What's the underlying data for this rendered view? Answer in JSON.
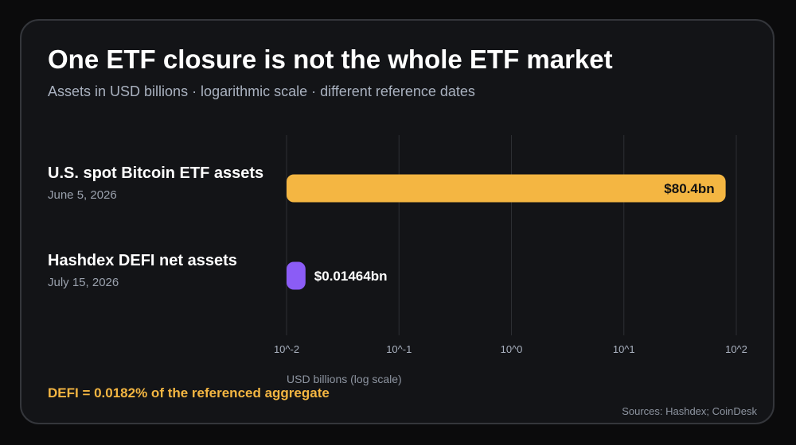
{
  "title": "One ETF closure is not the whole ETF market",
  "subtitle": "Assets in USD billions · logarithmic scale · different reference dates",
  "footnote": "DEFI = 0.0182% of the referenced aggregate",
  "source": "Sources: Hashdex; CoinDesk",
  "colors": {
    "background": "#0b0b0c",
    "card": "#131417",
    "bitcoin_bar": "#f4b642",
    "defi_bar": "#8b5cf6",
    "grid": "#2c2e33",
    "note": "#f4b642"
  },
  "chart_data": {
    "type": "bar",
    "orientation": "horizontal",
    "scale": "log",
    "categories": [
      "U.S. spot Bitcoin ETF assets",
      "Hashdex DEFI net assets"
    ],
    "dates": [
      "June 5, 2026",
      "July 15, 2026"
    ],
    "values": [
      80.4,
      0.01464
    ],
    "value_labels": [
      "$80.4bn",
      "$0.01464bn"
    ],
    "xlabel": "USD billions (log scale)",
    "xlim": [
      0.01,
      100
    ],
    "xticks": [
      0.01,
      0.1,
      1,
      10,
      100
    ],
    "xtick_labels": [
      "10^-2",
      "10^-1",
      "10^0",
      "10^1",
      "10^2"
    ],
    "grid": true
  }
}
